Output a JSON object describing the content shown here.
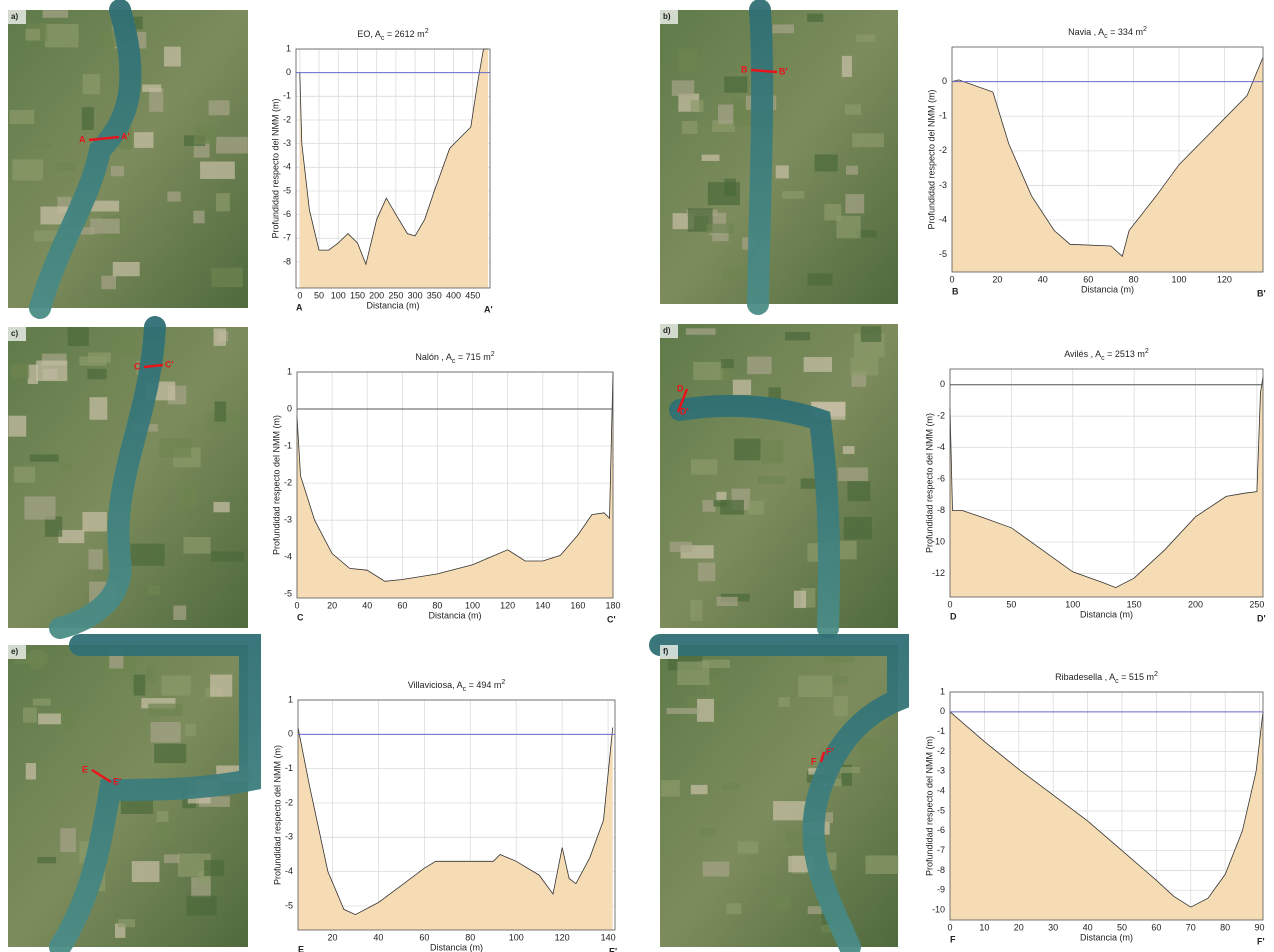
{
  "chart_data": [
    {
      "type": "area",
      "panel_label": "a)",
      "title": [
        "EO, A",
        "c",
        " = 2612 m",
        "2"
      ],
      "xlabel": "Distancia (m)",
      "ylabel": "Profundidad respecto del NMM (m)",
      "start_label": "A",
      "end_label": "A'",
      "color": "#f6dcb4",
      "zero_line": 0,
      "zero_color": "#6b6bd0",
      "grid": true,
      "x": [
        0,
        5,
        25,
        50,
        75,
        100,
        125,
        150,
        172,
        200,
        225,
        250,
        280,
        300,
        325,
        350,
        390,
        420,
        445,
        462,
        478,
        490
      ],
      "values": [
        0,
        -3,
        -5.8,
        -7.5,
        -7.5,
        -7.2,
        -6.8,
        -7.2,
        -8.1,
        -6.2,
        -5.3,
        -6,
        -6.8,
        -6.9,
        -6.2,
        -5,
        -3.2,
        -2.7,
        -2.3,
        -0.5,
        1,
        1
      ],
      "xlim": [
        -10,
        495
      ],
      "ylim": [
        -9.1,
        1
      ],
      "xticks": [
        0,
        50,
        100,
        150,
        200,
        250,
        300,
        350,
        400,
        450
      ],
      "yticks": [
        -8,
        -7,
        -6,
        -5,
        -4,
        -3,
        -2,
        -1,
        0,
        1
      ]
    },
    {
      "type": "area",
      "panel_label": "b)",
      "title": [
        "Navia , A",
        "c",
        " = 334 m",
        "2"
      ],
      "xlabel": "Distancia (m)",
      "ylabel": "Profundidad respecto del NMM (m)",
      "start_label": "B",
      "end_label": "B'",
      "color": "#f6dcb4",
      "zero_line": 0,
      "zero_color": "#6b6bd0",
      "grid": true,
      "x": [
        0,
        3,
        18,
        25,
        35,
        45,
        52,
        70,
        75,
        78,
        90,
        100,
        115,
        130,
        137
      ],
      "values": [
        0,
        0.05,
        -0.3,
        -1.8,
        -3.3,
        -4.3,
        -4.7,
        -4.75,
        -5.05,
        -4.3,
        -3.3,
        -2.4,
        -1.4,
        -0.4,
        0.7
      ],
      "xlim": [
        0,
        137
      ],
      "ylim": [
        -5.5,
        1
      ],
      "xticks": [
        0,
        20,
        40,
        60,
        80,
        100,
        120
      ],
      "yticks": [
        -5,
        -4,
        -3,
        -2,
        -1,
        0
      ]
    },
    {
      "type": "area",
      "panel_label": "c)",
      "title": [
        "Nalón , A",
        "c",
        " = 715 m",
        "2"
      ],
      "xlabel": "Distancia (m)",
      "ylabel": "Profundidad respecto del NMM (m)",
      "start_label": "C",
      "end_label": "C'",
      "color": "#f6dcb4",
      "zero_line": 0,
      "zero_color": "#555555",
      "grid": true,
      "x": [
        0,
        2,
        10,
        20,
        30,
        40,
        50,
        60,
        80,
        100,
        110,
        120,
        130,
        140,
        150,
        160,
        168,
        175,
        178,
        180
      ],
      "values": [
        -0.2,
        -1.8,
        -3,
        -3.9,
        -4.3,
        -4.35,
        -4.65,
        -4.6,
        -4.45,
        -4.2,
        -4,
        -3.8,
        -4.1,
        -4.1,
        -3.95,
        -3.4,
        -2.85,
        -2.8,
        -2.95,
        1
      ],
      "xlim": [
        0,
        180
      ],
      "ylim": [
        -5.1,
        1
      ],
      "xticks": [
        0,
        20,
        40,
        60,
        80,
        100,
        120,
        140,
        160,
        180
      ],
      "yticks": [
        -5,
        -4,
        -3,
        -2,
        -1,
        0,
        1
      ]
    },
    {
      "type": "area",
      "panel_label": "d)",
      "title": [
        "Avilés , A",
        "c",
        " = 2513 m",
        "2"
      ],
      "xlabel": "Distancia (m)",
      "ylabel": "Profundidad respecto del NMM (m)",
      "start_label": "D",
      "end_label": "D'",
      "color": "#f6dcb4",
      "zero_line": 0,
      "zero_color": "#555555",
      "grid": true,
      "x": [
        0,
        2,
        10,
        25,
        50,
        75,
        100,
        125,
        135,
        150,
        175,
        200,
        225,
        240,
        250,
        253,
        255
      ],
      "values": [
        -1.5,
        -8,
        -8,
        -8.4,
        -9.1,
        -10.5,
        -11.9,
        -12.6,
        -12.9,
        -12.3,
        -10.5,
        -8.4,
        -7.1,
        -6.9,
        -6.8,
        -0.5,
        0.5
      ],
      "xlim": [
        0,
        255
      ],
      "ylim": [
        -13.5,
        1
      ],
      "xticks": [
        0,
        50,
        100,
        150,
        200,
        250
      ],
      "yticks": [
        -12,
        -10,
        -8,
        -6,
        -4,
        -2,
        0
      ]
    },
    {
      "type": "area",
      "panel_label": "e)",
      "title": [
        "Villaviciosa, A",
        "c",
        " = 494 m",
        "2"
      ],
      "xlabel": "Distancia (m)",
      "ylabel": "Profundidad respecto del NMM (m)",
      "start_label": "E",
      "end_label": "E'",
      "color": "#f6dcb4",
      "zero_line": 0,
      "zero_color": "#6b6bd0",
      "grid": true,
      "x": [
        5,
        10,
        18,
        25,
        30,
        40,
        50,
        60,
        65,
        90,
        93,
        100,
        110,
        116,
        120,
        123,
        126,
        132,
        138,
        142
      ],
      "values": [
        0.2,
        -1.5,
        -4,
        -5.1,
        -5.25,
        -4.9,
        -4.4,
        -3.9,
        -3.7,
        -3.7,
        -3.5,
        -3.7,
        -4.1,
        -4.65,
        -3.3,
        -4.2,
        -4.35,
        -3.6,
        -2.5,
        0.2
      ],
      "xlim": [
        5,
        143
      ],
      "ylim": [
        -5.7,
        1
      ],
      "xticks": [
        20,
        40,
        60,
        80,
        100,
        120,
        140
      ],
      "yticks": [
        -5,
        -4,
        -3,
        -2,
        -1,
        0,
        1
      ]
    },
    {
      "type": "area",
      "panel_label": "f)",
      "title": [
        "Ribadesella , A",
        "c",
        " = 515 m",
        "2"
      ],
      "xlabel": "Distancia (m)",
      "ylabel": "Profundidad respecto del NMM (m)",
      "start_label": "F",
      "end_label": "F'",
      "color": "#f6dcb4",
      "zero_line": 0,
      "zero_color": "#6b6bd0",
      "grid": true,
      "x": [
        0,
        10,
        20,
        30,
        40,
        50,
        60,
        65,
        70,
        75,
        80,
        85,
        89,
        91
      ],
      "values": [
        0,
        -1.5,
        -2.9,
        -4.2,
        -5.5,
        -7,
        -8.5,
        -9.3,
        -9.85,
        -9.4,
        -8.2,
        -6,
        -3,
        0
      ],
      "xlim": [
        0,
        91
      ],
      "ylim": [
        -10.5,
        1
      ],
      "xticks": [
        0,
        10,
        20,
        30,
        40,
        50,
        60,
        70,
        80,
        90
      ],
      "yticks": [
        -10,
        -9,
        -8,
        -7,
        -6,
        -5,
        -4,
        -3,
        -2,
        -1,
        0,
        1
      ]
    }
  ]
}
